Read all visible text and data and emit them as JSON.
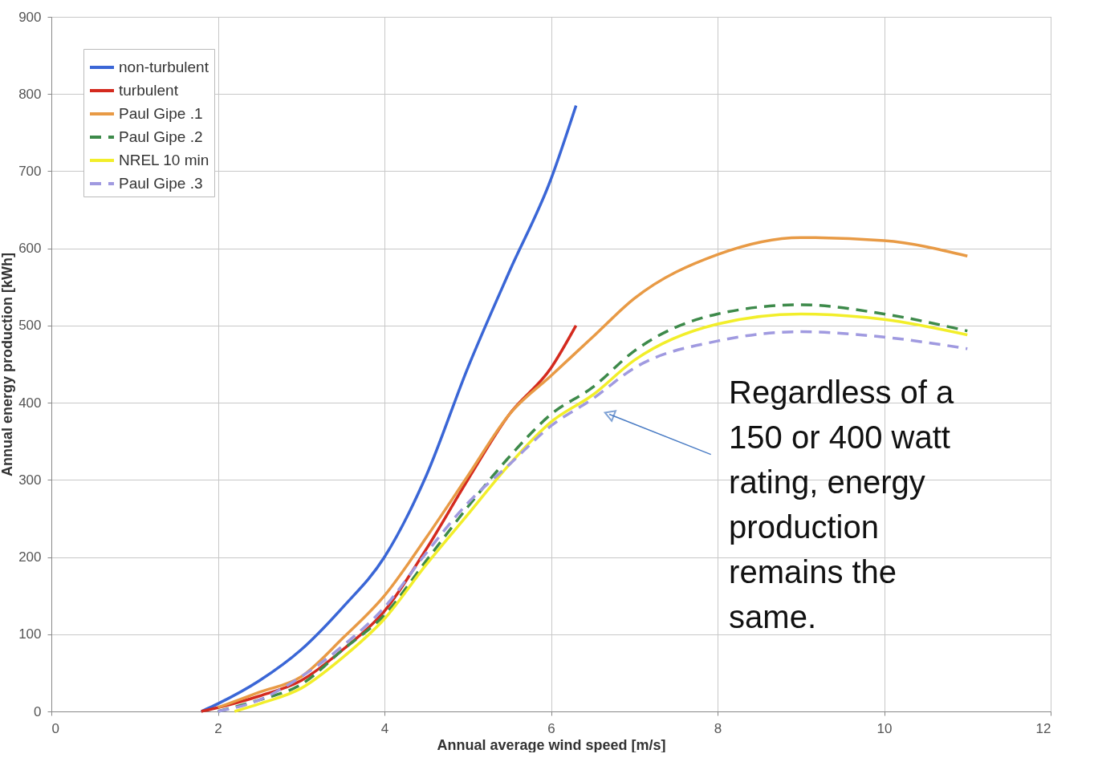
{
  "chart_data": {
    "type": "line",
    "xlabel": "Annual average wind speed [m/s]",
    "ylabel": "Annual energy production [kWh]",
    "xlim": [
      0,
      12
    ],
    "xticks": [
      0,
      2,
      4,
      6,
      8,
      10,
      12
    ],
    "ylim": [
      0,
      900
    ],
    "yticks": [
      0,
      100,
      200,
      300,
      400,
      500,
      600,
      700,
      800,
      900
    ],
    "grid": true,
    "legend": "top left",
    "line_style": "solid",
    "series": [
      {
        "name": "non-turbulent",
        "color": "#3a66d6",
        "x": [
          1.8,
          2,
          2.5,
          3,
          3.5,
          4,
          4.5,
          5,
          5.5,
          6,
          6.3
        ],
        "values": [
          0,
          10,
          40,
          80,
          135,
          200,
          305,
          445,
          570,
          690,
          785
        ]
      },
      {
        "name": "turbulent",
        "color": "#d42a1e",
        "x": [
          1.8,
          2,
          2.5,
          3,
          3.5,
          4,
          4.5,
          5,
          5.5,
          6,
          6.3
        ],
        "values": [
          0,
          5,
          20,
          40,
          80,
          130,
          210,
          300,
          385,
          445,
          500
        ]
      },
      {
        "name": "Paul Gipe .1",
        "color": "#e89a45",
        "x": [
          2,
          2.5,
          3,
          3.5,
          4,
          4.5,
          5,
          5.5,
          6,
          6.5,
          7,
          8,
          9,
          10,
          11
        ],
        "values": [
          5,
          25,
          45,
          95,
          150,
          225,
          305,
          385,
          435,
          485,
          535,
          592,
          614,
          610,
          590
        ]
      },
      {
        "name": "Paul Gipe .2",
        "color": "#3d8a4a",
        "line_style": "dashed",
        "x": [
          2,
          2.5,
          3,
          3.5,
          4,
          4.5,
          5,
          5.5,
          6,
          6.5,
          7,
          8,
          9,
          10,
          11
        ],
        "values": [
          0,
          15,
          35,
          80,
          125,
          195,
          265,
          330,
          385,
          420,
          467,
          515,
          527,
          515,
          493
        ]
      },
      {
        "name": "NREL 10 min",
        "color": "#f2ee2a",
        "x": [
          2.2,
          2.5,
          3,
          3.5,
          4,
          4.5,
          5,
          5.5,
          6,
          6.5,
          7,
          8,
          9,
          10,
          11
        ],
        "values": [
          0,
          10,
          30,
          70,
          120,
          190,
          255,
          320,
          375,
          410,
          455,
          502,
          515,
          508,
          488
        ]
      },
      {
        "name": "Paul Gipe .3",
        "color": "#a09ae0",
        "line_style": "dashed",
        "x": [
          2,
          2.5,
          3,
          3.5,
          4,
          4.5,
          5,
          5.5,
          6,
          6.5,
          7,
          8,
          9,
          10,
          11
        ],
        "values": [
          0,
          15,
          45,
          85,
          135,
          205,
          270,
          320,
          370,
          405,
          445,
          480,
          492,
          485,
          470
        ]
      }
    ],
    "annotations": [
      {
        "text": "Regardless of  a 150 or 400 watt rating, energy production remains the same.",
        "x": 6.7,
        "y": 385
      }
    ]
  }
}
